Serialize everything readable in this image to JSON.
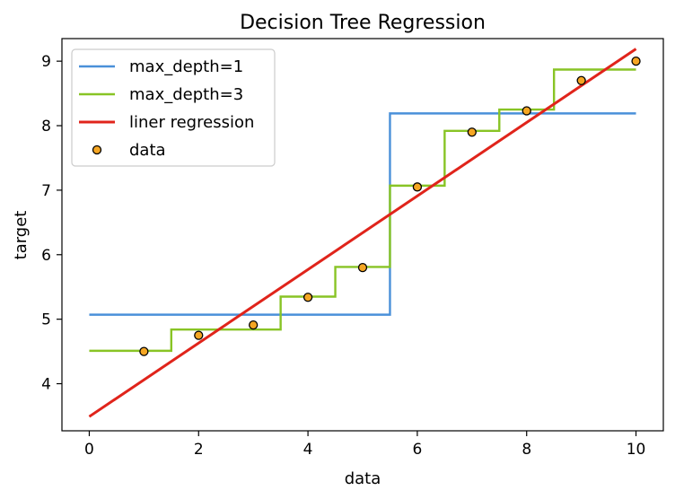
{
  "chart_data": {
    "type": "line",
    "title": "Decision Tree Regression",
    "xlabel": "data",
    "ylabel": "target",
    "xlim": [
      -0.5,
      10.5
    ],
    "ylim": [
      3.27,
      9.35
    ],
    "xticks": [
      0,
      2,
      4,
      6,
      8,
      10
    ],
    "yticks": [
      4,
      5,
      6,
      7,
      8,
      9
    ],
    "grid": false,
    "legend_position": "top-left",
    "series": [
      {
        "name": "max_depth=1",
        "kind": "step",
        "color": "#4a90d9",
        "x": [
          0,
          5.5,
          5.5,
          10
        ],
        "y": [
          5.07,
          5.07,
          8.19,
          8.19
        ]
      },
      {
        "name": "max_depth=3",
        "kind": "step",
        "color": "#88c425",
        "x": [
          0,
          1.5,
          1.5,
          3.5,
          3.5,
          4.5,
          4.5,
          5.5,
          5.5,
          6.5,
          6.5,
          7.5,
          7.5,
          8.5,
          8.5,
          10
        ],
        "y": [
          4.51,
          4.51,
          4.84,
          4.84,
          5.35,
          5.35,
          5.81,
          5.81,
          7.07,
          7.07,
          7.92,
          7.92,
          8.25,
          8.25,
          8.87,
          8.87
        ]
      },
      {
        "name": "liner regression",
        "kind": "line",
        "color": "#e0241b",
        "x": [
          0,
          10
        ],
        "y": [
          3.49,
          9.19
        ]
      },
      {
        "name": "data",
        "kind": "scatter",
        "color": "#f5a623",
        "edgecolor": "#000000",
        "x": [
          1,
          2,
          3,
          4,
          5,
          6,
          7,
          8,
          9,
          10
        ],
        "y": [
          4.5,
          4.75,
          4.91,
          5.34,
          5.8,
          7.05,
          7.9,
          8.23,
          8.7,
          9.0
        ]
      }
    ]
  }
}
